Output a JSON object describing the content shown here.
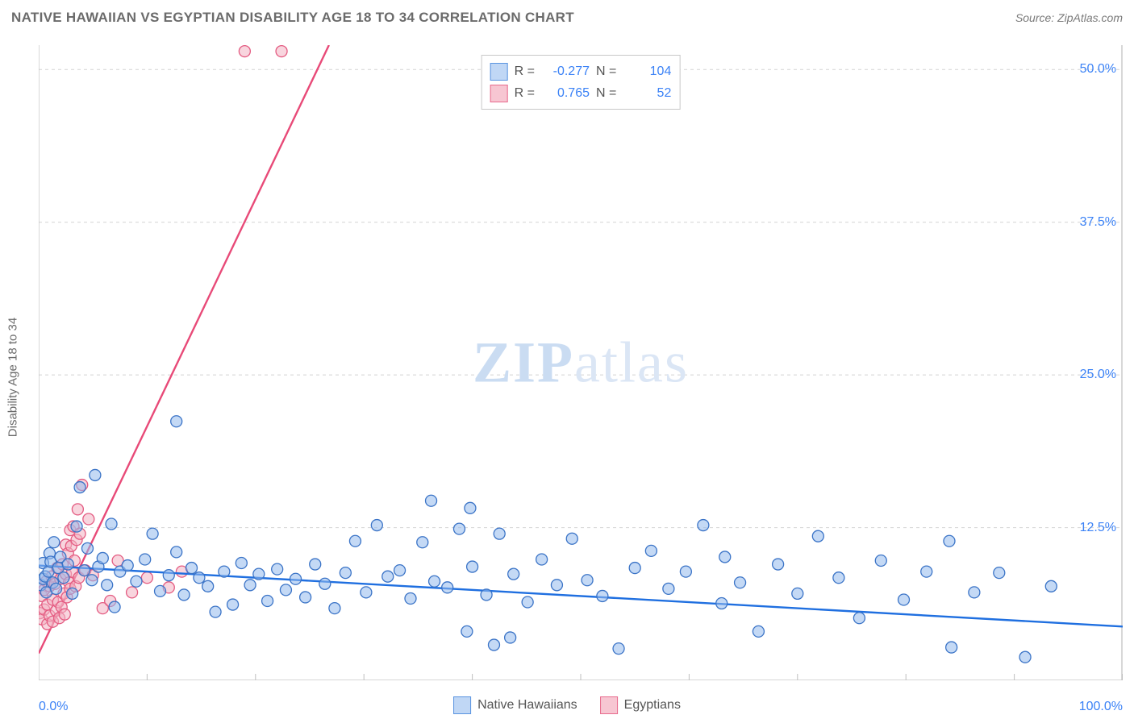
{
  "header": {
    "title": "NATIVE HAWAIIAN VS EGYPTIAN DISABILITY AGE 18 TO 34 CORRELATION CHART",
    "source": "Source: ZipAtlas.com"
  },
  "axes": {
    "y_label": "Disability Age 18 to 34",
    "x_min_label": "0.0%",
    "x_max_label": "100.0%",
    "right_ticks": [
      {
        "value": 12.5,
        "label": "12.5%"
      },
      {
        "value": 25.0,
        "label": "25.0%"
      },
      {
        "value": 37.5,
        "label": "37.5%"
      },
      {
        "value": 50.0,
        "label": "50.0%"
      }
    ],
    "xlim": [
      0,
      100
    ],
    "ylim": [
      0,
      52
    ],
    "x_ticks": [
      0,
      10,
      20,
      30,
      40,
      50,
      60,
      70,
      80,
      90,
      100
    ]
  },
  "watermark": {
    "prefix": "ZIP",
    "suffix": "atlas"
  },
  "correlation_legend": [
    {
      "swatch_fill": "#c0d7f5",
      "swatch_stroke": "#5a94e0",
      "r_label": "R =",
      "r": "-0.277",
      "n_label": "N =",
      "n": "104"
    },
    {
      "swatch_fill": "#f7c6d2",
      "swatch_stroke": "#e86a8d",
      "r_label": "R =",
      "r": "0.765",
      "n_label": "N =",
      "n": "52"
    }
  ],
  "bottom_legend": [
    {
      "label": "Native Hawaiians",
      "fill": "#c0d7f5",
      "stroke": "#5a94e0"
    },
    {
      "label": "Egyptians",
      "fill": "#f7c6d2",
      "stroke": "#e86a8d"
    }
  ],
  "styling": {
    "background_color": "#ffffff",
    "grid_color": "#d4d4d4",
    "axis_color": "#bfbfbf",
    "tick_color": "#bfbfbf",
    "point_radius": 7,
    "point_stroke_width": 1.3,
    "point_fill_opacity": 0.55,
    "trend_line_width": 2.4
  },
  "series": [
    {
      "name": "Native Hawaiians",
      "fill": "#93b9ec",
      "stroke": "#3b74c7",
      "trend_color": "#1f6fe0",
      "trend": {
        "x1": 0,
        "y1": 9.4,
        "x2": 100,
        "y2": 4.4
      },
      "points": [
        [
          0.2,
          7.8
        ],
        [
          0.4,
          9.6
        ],
        [
          0.4,
          8.3
        ],
        [
          0.6,
          8.5
        ],
        [
          0.7,
          7.2
        ],
        [
          0.9,
          8.9
        ],
        [
          1.0,
          10.4
        ],
        [
          1.1,
          9.7
        ],
        [
          1.3,
          8.0
        ],
        [
          1.4,
          11.3
        ],
        [
          1.6,
          7.5
        ],
        [
          1.8,
          9.2
        ],
        [
          2.0,
          10.1
        ],
        [
          2.3,
          8.4
        ],
        [
          2.7,
          9.5
        ],
        [
          3.1,
          7.1
        ],
        [
          3.5,
          12.6
        ],
        [
          3.8,
          15.8
        ],
        [
          4.2,
          9.0
        ],
        [
          4.5,
          10.8
        ],
        [
          4.9,
          8.2
        ],
        [
          5.2,
          16.8
        ],
        [
          5.5,
          9.3
        ],
        [
          5.9,
          10.0
        ],
        [
          6.3,
          7.8
        ],
        [
          6.7,
          12.8
        ],
        [
          7.0,
          6.0
        ],
        [
          7.5,
          8.9
        ],
        [
          8.2,
          9.4
        ],
        [
          9.0,
          8.1
        ],
        [
          9.8,
          9.9
        ],
        [
          10.5,
          12.0
        ],
        [
          11.2,
          7.3
        ],
        [
          12.0,
          8.6
        ],
        [
          12.7,
          10.5
        ],
        [
          12.7,
          21.2
        ],
        [
          13.4,
          7.0
        ],
        [
          14.1,
          9.2
        ],
        [
          14.8,
          8.4
        ],
        [
          15.6,
          7.7
        ],
        [
          16.3,
          5.6
        ],
        [
          17.1,
          8.9
        ],
        [
          17.9,
          6.2
        ],
        [
          18.7,
          9.6
        ],
        [
          19.5,
          7.8
        ],
        [
          20.3,
          8.7
        ],
        [
          21.1,
          6.5
        ],
        [
          22.0,
          9.1
        ],
        [
          22.8,
          7.4
        ],
        [
          23.7,
          8.3
        ],
        [
          24.6,
          6.8
        ],
        [
          25.5,
          9.5
        ],
        [
          26.4,
          7.9
        ],
        [
          27.3,
          5.9
        ],
        [
          28.3,
          8.8
        ],
        [
          29.2,
          11.4
        ],
        [
          30.2,
          7.2
        ],
        [
          31.2,
          12.7
        ],
        [
          32.2,
          8.5
        ],
        [
          33.3,
          9.0
        ],
        [
          34.3,
          6.7
        ],
        [
          35.4,
          11.3
        ],
        [
          36.5,
          8.1
        ],
        [
          36.2,
          14.7
        ],
        [
          37.7,
          7.6
        ],
        [
          38.8,
          12.4
        ],
        [
          39.5,
          4.0
        ],
        [
          39.8,
          14.1
        ],
        [
          40.0,
          9.3
        ],
        [
          41.3,
          7.0
        ],
        [
          42.0,
          2.9
        ],
        [
          42.5,
          12.0
        ],
        [
          43.8,
          8.7
        ],
        [
          43.5,
          3.5
        ],
        [
          45.1,
          6.4
        ],
        [
          46.4,
          9.9
        ],
        [
          47.8,
          7.8
        ],
        [
          49.2,
          11.6
        ],
        [
          50.6,
          8.2
        ],
        [
          52.0,
          6.9
        ],
        [
          53.5,
          2.6
        ],
        [
          55.0,
          9.2
        ],
        [
          56.5,
          10.6
        ],
        [
          58.1,
          7.5
        ],
        [
          59.7,
          8.9
        ],
        [
          61.3,
          12.7
        ],
        [
          63.0,
          6.3
        ],
        [
          63.3,
          10.1
        ],
        [
          64.7,
          8.0
        ],
        [
          66.4,
          4.0
        ],
        [
          68.2,
          9.5
        ],
        [
          70.0,
          7.1
        ],
        [
          71.9,
          11.8
        ],
        [
          73.8,
          8.4
        ],
        [
          75.7,
          5.1
        ],
        [
          77.7,
          9.8
        ],
        [
          79.8,
          6.6
        ],
        [
          81.9,
          8.9
        ],
        [
          84.0,
          11.4
        ],
        [
          84.2,
          2.7
        ],
        [
          86.3,
          7.2
        ],
        [
          88.6,
          8.8
        ],
        [
          91.0,
          1.9
        ],
        [
          93.4,
          7.7
        ]
      ]
    },
    {
      "name": "Egyptians",
      "fill": "#f3b3c3",
      "stroke": "#e45c82",
      "trend_color": "#e84a78",
      "trend": {
        "x1": 0,
        "y1": 2.2,
        "x2": 30,
        "y2": 58.0
      },
      "points": [
        [
          0.1,
          5.5
        ],
        [
          0.3,
          6.9
        ],
        [
          0.3,
          5.0
        ],
        [
          0.5,
          7.4
        ],
        [
          0.5,
          5.8
        ],
        [
          0.7,
          8.1
        ],
        [
          0.8,
          6.2
        ],
        [
          0.8,
          4.6
        ],
        [
          1.0,
          7.7
        ],
        [
          1.0,
          5.3
        ],
        [
          1.2,
          8.5
        ],
        [
          1.3,
          6.6
        ],
        [
          1.3,
          4.8
        ],
        [
          1.5,
          7.9
        ],
        [
          1.6,
          5.7
        ],
        [
          1.7,
          9.2
        ],
        [
          1.8,
          6.4
        ],
        [
          1.9,
          5.1
        ],
        [
          2.0,
          8.3
        ],
        [
          2.1,
          6.0
        ],
        [
          2.2,
          9.5
        ],
        [
          2.3,
          7.1
        ],
        [
          2.4,
          5.4
        ],
        [
          2.5,
          8.7
        ],
        [
          2.5,
          11.1
        ],
        [
          2.6,
          6.8
        ],
        [
          2.7,
          10.4
        ],
        [
          2.8,
          8.0
        ],
        [
          2.9,
          12.3
        ],
        [
          2.9,
          7.5
        ],
        [
          3.0,
          11.0
        ],
        [
          3.1,
          8.9
        ],
        [
          3.2,
          12.6
        ],
        [
          3.3,
          9.8
        ],
        [
          3.4,
          7.7
        ],
        [
          3.5,
          11.5
        ],
        [
          3.6,
          14.0
        ],
        [
          3.7,
          8.4
        ],
        [
          3.8,
          12.0
        ],
        [
          4.0,
          16.0
        ],
        [
          4.3,
          9.0
        ],
        [
          4.6,
          13.2
        ],
        [
          5.0,
          8.6
        ],
        [
          5.9,
          5.9
        ],
        [
          6.6,
          6.5
        ],
        [
          7.3,
          9.8
        ],
        [
          8.6,
          7.2
        ],
        [
          10.0,
          8.4
        ],
        [
          12.0,
          7.6
        ],
        [
          13.2,
          8.9
        ],
        [
          19.0,
          51.5
        ],
        [
          22.4,
          51.5
        ]
      ]
    }
  ]
}
